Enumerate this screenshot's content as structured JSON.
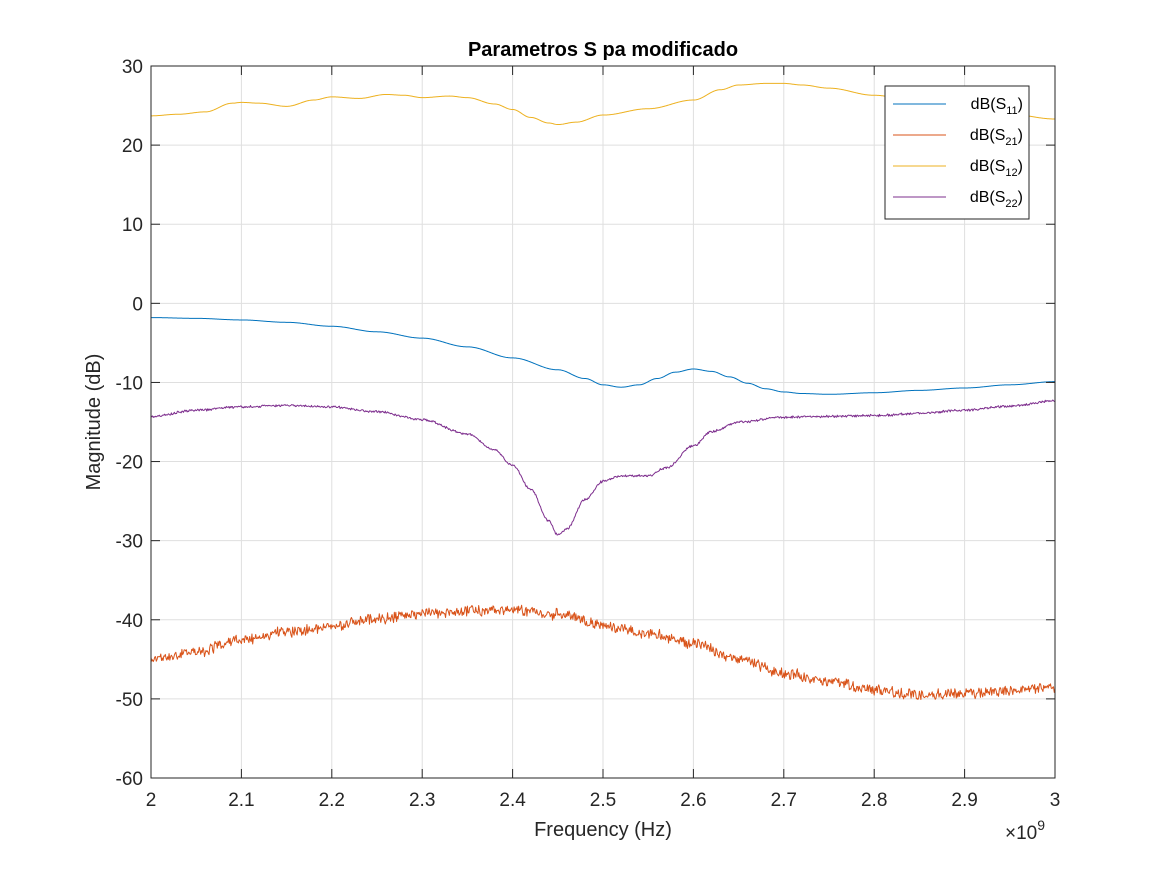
{
  "chart_data": {
    "type": "line",
    "title": "Parametros S pa modificado",
    "xlabel": "Frequency (Hz)",
    "ylabel": "Magnitude (dB)",
    "x_exponent_base": "×10",
    "x_exponent_power": "9",
    "xlim": [
      2.0,
      3.0
    ],
    "ylim": [
      -60,
      30
    ],
    "xticks": [
      2.0,
      2.1,
      2.2,
      2.3,
      2.4,
      2.5,
      2.6,
      2.7,
      2.8,
      2.9,
      3.0
    ],
    "xtick_labels": [
      "2",
      "2.1",
      "2.2",
      "2.3",
      "2.4",
      "2.5",
      "2.6",
      "2.7",
      "2.8",
      "2.9",
      "3"
    ],
    "yticks": [
      -60,
      -50,
      -40,
      -30,
      -20,
      -10,
      0,
      10,
      20,
      30
    ],
    "ytick_labels": [
      "-60",
      "-50",
      "-40",
      "-30",
      "-20",
      "-10",
      "0",
      "10",
      "20",
      "30"
    ],
    "grid": true,
    "legend_position": "top-right",
    "series": [
      {
        "name": "dB(S11)",
        "label_main": "dB(S",
        "label_sub": "11",
        "label_end": ")",
        "color": "#0072bd",
        "noise": 0,
        "x": [
          2.0,
          2.05,
          2.1,
          2.15,
          2.2,
          2.25,
          2.3,
          2.35,
          2.4,
          2.45,
          2.48,
          2.5,
          2.52,
          2.54,
          2.56,
          2.58,
          2.6,
          2.62,
          2.64,
          2.66,
          2.68,
          2.7,
          2.72,
          2.75,
          2.8,
          2.85,
          2.9,
          2.95,
          3.0
        ],
        "y": [
          -1.8,
          -1.9,
          -2.1,
          -2.4,
          -2.9,
          -3.6,
          -4.4,
          -5.5,
          -6.9,
          -8.4,
          -9.5,
          -10.3,
          -10.6,
          -10.3,
          -9.5,
          -8.7,
          -8.3,
          -8.6,
          -9.3,
          -10.1,
          -10.8,
          -11.2,
          -11.4,
          -11.5,
          -11.3,
          -11.0,
          -10.7,
          -10.3,
          -9.9
        ]
      },
      {
        "name": "dB(S21)",
        "label_main": "dB(S",
        "label_sub": "21",
        "label_end": ")",
        "color": "#d95319",
        "noise": 0.55,
        "x": [
          2.0,
          2.05,
          2.1,
          2.15,
          2.2,
          2.25,
          2.3,
          2.35,
          2.4,
          2.45,
          2.5,
          2.55,
          2.6,
          2.65,
          2.7,
          2.75,
          2.8,
          2.85,
          2.9,
          2.95,
          3.0
        ],
        "y": [
          -45.0,
          -44.0,
          -42.5,
          -41.5,
          -40.8,
          -39.8,
          -39.2,
          -38.9,
          -38.8,
          -39.3,
          -40.6,
          -41.8,
          -43.0,
          -45.0,
          -46.8,
          -47.8,
          -48.8,
          -49.5,
          -49.3,
          -48.9,
          -48.6
        ]
      },
      {
        "name": "dB(S12)",
        "label_main": "dB(S",
        "label_sub": "12",
        "label_end": ")",
        "color": "#edb120",
        "noise": 0,
        "x": [
          2.0,
          2.03,
          2.06,
          2.09,
          2.1,
          2.12,
          2.15,
          2.18,
          2.2,
          2.23,
          2.26,
          2.28,
          2.3,
          2.33,
          2.35,
          2.38,
          2.4,
          2.42,
          2.44,
          2.45,
          2.47,
          2.5,
          2.55,
          2.6,
          2.63,
          2.65,
          2.68,
          2.7,
          2.72,
          2.75,
          2.8,
          2.85,
          2.9,
          2.95,
          3.0
        ],
        "y": [
          23.7,
          23.9,
          24.2,
          25.3,
          25.4,
          25.3,
          24.9,
          25.7,
          26.1,
          25.9,
          26.4,
          26.3,
          26.0,
          26.2,
          26.0,
          25.2,
          24.5,
          23.5,
          22.8,
          22.6,
          22.9,
          23.8,
          24.6,
          25.7,
          27.0,
          27.6,
          27.8,
          27.8,
          27.6,
          27.2,
          26.3,
          25.5,
          24.6,
          23.9,
          23.3
        ]
      },
      {
        "name": "dB(S22)",
        "label_main": "dB(S",
        "label_sub": "22",
        "label_end": ")",
        "color": "#7e2f8e",
        "noise": 0.12,
        "x": [
          2.0,
          2.05,
          2.1,
          2.15,
          2.2,
          2.25,
          2.3,
          2.35,
          2.38,
          2.4,
          2.42,
          2.44,
          2.45,
          2.46,
          2.48,
          2.5,
          2.52,
          2.55,
          2.57,
          2.6,
          2.62,
          2.65,
          2.7,
          2.75,
          2.8,
          2.85,
          2.9,
          2.95,
          3.0
        ],
        "y": [
          -14.3,
          -13.5,
          -13.1,
          -12.9,
          -13.1,
          -13.7,
          -14.7,
          -16.5,
          -18.5,
          -20.5,
          -23.5,
          -27.5,
          -29.3,
          -28.5,
          -24.8,
          -22.5,
          -21.8,
          -21.8,
          -20.8,
          -18.0,
          -16.2,
          -15.0,
          -14.4,
          -14.3,
          -14.2,
          -13.9,
          -13.5,
          -13.0,
          -12.3
        ]
      }
    ]
  }
}
